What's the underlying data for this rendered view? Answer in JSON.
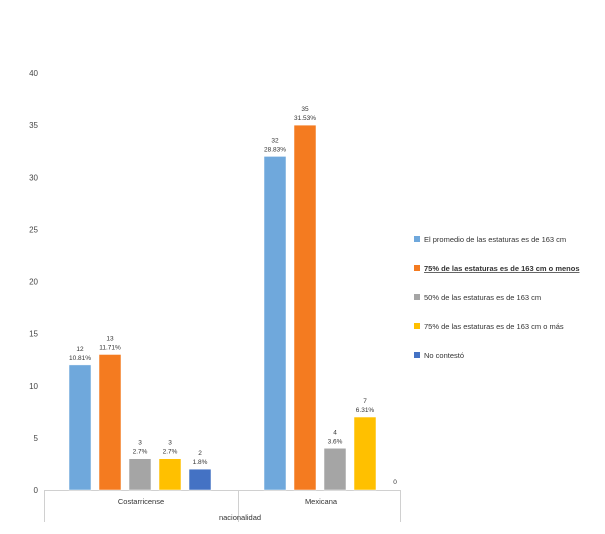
{
  "chart_data": {
    "type": "bar",
    "categories": [
      "Costarricense",
      "Mexicana"
    ],
    "xlabel": "nacionalidad",
    "ylim": [
      0,
      40
    ],
    "yticks": [
      "0",
      "5",
      "10",
      "15",
      "20",
      "25",
      "30",
      "35",
      "40"
    ],
    "grid": false,
    "legend_position": "right",
    "selected_series": 1,
    "series": [
      {
        "name": "El promedio de las estaturas es de 163 cm",
        "color": "#6fa8dc",
        "values": [
          12,
          32
        ],
        "labels": [
          [
            "12",
            "10.81%"
          ],
          [
            "32",
            "28.83%"
          ]
        ]
      },
      {
        "name": "75% de las estaturas es de 163 cm o menos",
        "color": "#f47b20",
        "values": [
          13,
          35
        ],
        "labels": [
          [
            "13",
            "11.71%"
          ],
          [
            "35",
            "31.53%"
          ]
        ]
      },
      {
        "name": "50% de las estaturas es de 163 cm",
        "color": "#a5a5a5",
        "values": [
          3,
          4
        ],
        "labels": [
          [
            "3",
            "2.7%"
          ],
          [
            "4",
            "3.6%"
          ]
        ]
      },
      {
        "name": "75% de las estaturas es de 163 cm o más",
        "color": "#ffc000",
        "values": [
          3,
          7
        ],
        "labels": [
          [
            "3",
            "2.7%"
          ],
          [
            "7",
            "6.31%"
          ]
        ]
      },
      {
        "name": "No contestó",
        "color": "#4472c4",
        "values": [
          2,
          0
        ],
        "labels": [
          [
            "2",
            "1.8%"
          ],
          [
            "0"
          ]
        ]
      }
    ]
  }
}
